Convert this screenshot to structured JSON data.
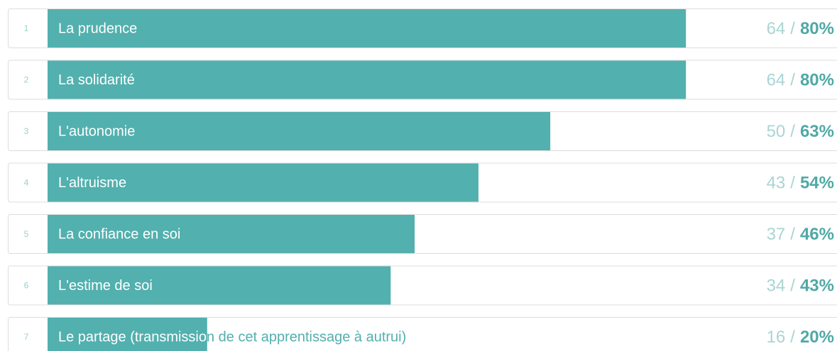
{
  "chart_data": {
    "type": "bar",
    "orientation": "horizontal",
    "ranks": [
      1,
      2,
      3,
      4,
      5,
      6,
      7
    ],
    "categories": [
      "La prudence",
      "La solidarité",
      "L'autonomie",
      "L'altruisme",
      "La confiance en soi",
      "L'estime de soi",
      "Le partage (transmission de cet apprentissage à autrui)"
    ],
    "counts": [
      64,
      64,
      50,
      43,
      37,
      34,
      16
    ],
    "separator": "/",
    "values": [
      80,
      80,
      63,
      54,
      46,
      43,
      20
    ],
    "value_labels": [
      "80%",
      "80%",
      "63%",
      "54%",
      "46%",
      "43%",
      "20%"
    ],
    "xlim": [
      0,
      100
    ],
    "color": "#52b0ae"
  }
}
